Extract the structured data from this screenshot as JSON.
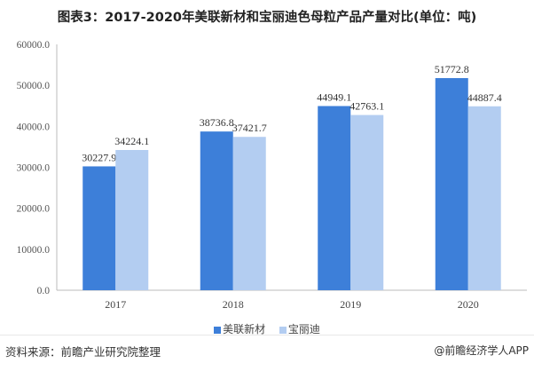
{
  "chart_data": {
    "type": "bar",
    "title": "图表3：2017-2020年美联新材和宝丽迪色母粒产品产量对比(单位：吨)",
    "categories": [
      "2017",
      "2018",
      "2019",
      "2020"
    ],
    "series": [
      {
        "name": "美联新材",
        "color": "#3d7fd9",
        "values": [
          30227.9,
          38736.8,
          44949.1,
          51772.8
        ],
        "labels": [
          "30227.9",
          "38736.8",
          "44949.1",
          "51772.8"
        ]
      },
      {
        "name": "宝丽迪",
        "color": "#b3cdf1",
        "values": [
          34224.1,
          37421.7,
          42763.1,
          44887.4
        ],
        "labels": [
          "34224.1",
          "37421.7",
          "42763.1",
          "44887.4"
        ]
      }
    ],
    "ylim": [
      0,
      60000
    ],
    "yticks": [
      "0.0",
      "10000.0",
      "20000.0",
      "30000.0",
      "40000.0",
      "50000.0",
      "60000.0"
    ],
    "xlabel": "",
    "ylabel": "",
    "grid": false,
    "legend": "bottom"
  },
  "footer": {
    "source": "资料来源：前瞻产业研究院整理",
    "credit": "@前瞻经济学人APP"
  }
}
